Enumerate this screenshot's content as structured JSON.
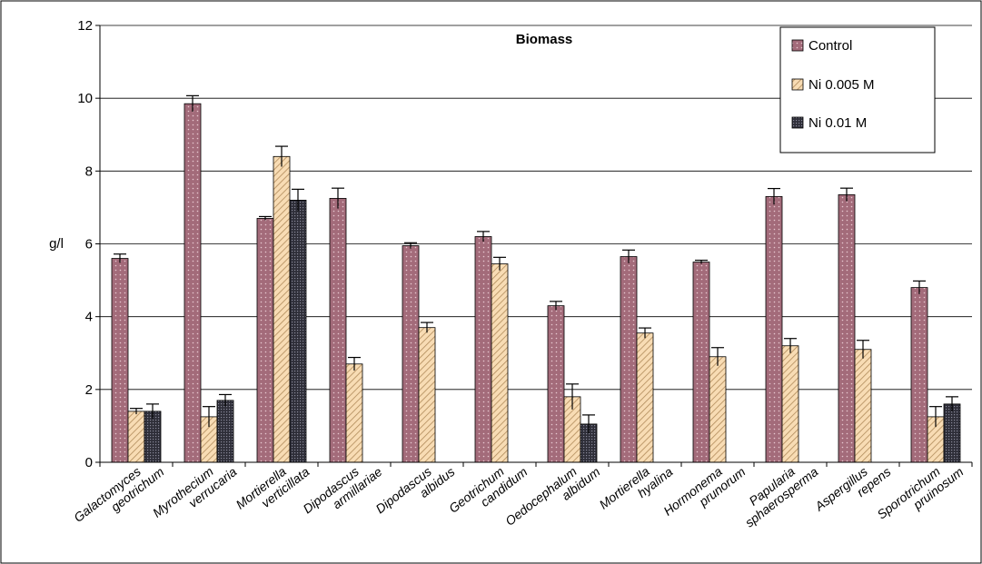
{
  "chart_data": {
    "type": "bar",
    "title": "Biomass",
    "ylabel": "g/l",
    "xlabel": "",
    "ylim": [
      0,
      12
    ],
    "yticks": [
      0,
      2,
      4,
      6,
      8,
      10,
      12
    ],
    "grid": true,
    "legend_position": "top-right",
    "categories": [
      [
        "Galactomyces",
        "geotrichum"
      ],
      [
        "Myrothecium",
        "verrucaria"
      ],
      [
        "Mortierella",
        "verticillata"
      ],
      [
        "Dipodascus",
        "armillariae"
      ],
      [
        "Dipodascus",
        "albidus"
      ],
      [
        "Geotrichum",
        "candidum"
      ],
      [
        "Oedocephalum",
        "albidum"
      ],
      [
        "Mortierella",
        "hyalina"
      ],
      [
        "Hormonema",
        "prunorum"
      ],
      [
        "Papularia",
        "sphaerosperma"
      ],
      [
        "Aspergillus",
        "repens"
      ],
      [
        "Sporotrichum",
        "pruinosum"
      ]
    ],
    "series": [
      {
        "name": "Control",
        "color": "#a36b7a",
        "pattern": "dots",
        "values": [
          5.6,
          9.85,
          6.7,
          7.25,
          5.95,
          6.2,
          4.3,
          5.65,
          5.5,
          7.3,
          7.35,
          4.8
        ],
        "errors": [
          0.12,
          0.22,
          0.05,
          0.28,
          0.08,
          0.14,
          0.12,
          0.18,
          0.05,
          0.22,
          0.18,
          0.18
        ]
      },
      {
        "name": "Ni 0.005 M",
        "color": "#f4d3a8",
        "pattern": "hatch",
        "values": [
          1.4,
          1.25,
          8.4,
          2.7,
          3.7,
          5.45,
          1.8,
          3.55,
          2.9,
          3.2,
          3.1,
          1.25
        ],
        "errors": [
          0.08,
          0.28,
          0.28,
          0.18,
          0.14,
          0.18,
          0.35,
          0.14,
          0.25,
          0.2,
          0.25,
          0.28
        ]
      },
      {
        "name": "Ni 0.01 M",
        "color": "#3c3c4a",
        "pattern": "grid",
        "values": [
          1.4,
          1.7,
          7.2,
          null,
          null,
          null,
          1.05,
          null,
          null,
          null,
          null,
          1.6
        ],
        "errors": [
          0.2,
          0.16,
          0.3,
          null,
          null,
          null,
          0.25,
          null,
          null,
          null,
          null,
          0.2
        ]
      }
    ]
  }
}
